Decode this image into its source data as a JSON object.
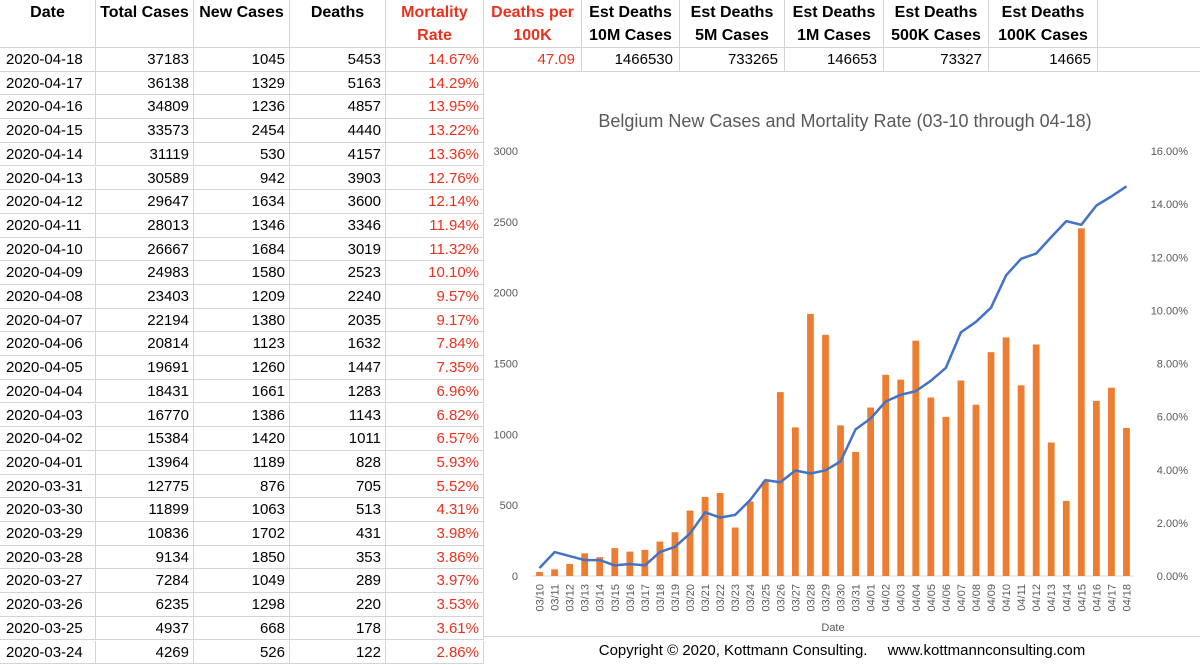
{
  "headers": {
    "date": "Date",
    "total_cases": "Total Cases",
    "new_cases": "New Cases",
    "deaths": "Deaths",
    "mortality_rate": [
      "Mortality",
      "Rate"
    ],
    "deaths_per_100k": [
      "Deaths per",
      "100K"
    ],
    "est_10m": [
      "Est Deaths",
      "10M Cases"
    ],
    "est_5m": [
      "Est Deaths",
      "5M Cases"
    ],
    "est_1m": [
      "Est Deaths",
      "1M Cases"
    ],
    "est_500k": [
      "Est Deaths",
      "500K Cases"
    ],
    "est_100k": [
      "Est Deaths",
      "100K Cases"
    ]
  },
  "estimates": {
    "deaths_per_100k": "47.09",
    "est_10m": "1466530",
    "est_5m": "733265",
    "est_1m": "146653",
    "est_500k": "73327",
    "est_100k": "14665"
  },
  "rows": [
    [
      "2020-04-18",
      "37183",
      "1045",
      "5453",
      "14.67%"
    ],
    [
      "2020-04-17",
      "36138",
      "1329",
      "5163",
      "14.29%"
    ],
    [
      "2020-04-16",
      "34809",
      "1236",
      "4857",
      "13.95%"
    ],
    [
      "2020-04-15",
      "33573",
      "2454",
      "4440",
      "13.22%"
    ],
    [
      "2020-04-14",
      "31119",
      "530",
      "4157",
      "13.36%"
    ],
    [
      "2020-04-13",
      "30589",
      "942",
      "3903",
      "12.76%"
    ],
    [
      "2020-04-12",
      "29647",
      "1634",
      "3600",
      "12.14%"
    ],
    [
      "2020-04-11",
      "28013",
      "1346",
      "3346",
      "11.94%"
    ],
    [
      "2020-04-10",
      "26667",
      "1684",
      "3019",
      "11.32%"
    ],
    [
      "2020-04-09",
      "24983",
      "1580",
      "2523",
      "10.10%"
    ],
    [
      "2020-04-08",
      "23403",
      "1209",
      "2240",
      "9.57%"
    ],
    [
      "2020-04-07",
      "22194",
      "1380",
      "2035",
      "9.17%"
    ],
    [
      "2020-04-06",
      "20814",
      "1123",
      "1632",
      "7.84%"
    ],
    [
      "2020-04-05",
      "19691",
      "1260",
      "1447",
      "7.35%"
    ],
    [
      "2020-04-04",
      "18431",
      "1661",
      "1283",
      "6.96%"
    ],
    [
      "2020-04-03",
      "16770",
      "1386",
      "1143",
      "6.82%"
    ],
    [
      "2020-04-02",
      "15384",
      "1420",
      "1011",
      "6.57%"
    ],
    [
      "2020-04-01",
      "13964",
      "1189",
      "828",
      "5.93%"
    ],
    [
      "2020-03-31",
      "12775",
      "876",
      "705",
      "5.52%"
    ],
    [
      "2020-03-30",
      "11899",
      "1063",
      "513",
      "4.31%"
    ],
    [
      "2020-03-29",
      "10836",
      "1702",
      "431",
      "3.98%"
    ],
    [
      "2020-03-28",
      "9134",
      "1850",
      "353",
      "3.86%"
    ],
    [
      "2020-03-27",
      "7284",
      "1049",
      "289",
      "3.97%"
    ],
    [
      "2020-03-26",
      "6235",
      "1298",
      "220",
      "3.53%"
    ],
    [
      "2020-03-25",
      "4937",
      "668",
      "178",
      "3.61%"
    ],
    [
      "2020-03-24",
      "4269",
      "526",
      "122",
      "2.86%"
    ]
  ],
  "copyright": {
    "text": "Copyright © 2020, Kottmann Consulting.",
    "url": "www.kottmannconsulting.com"
  },
  "colors": {
    "bar": "#ed7d31",
    "line": "#4472c4",
    "red_text": "#e8321e"
  },
  "chart_data": {
    "type": "bar",
    "title": "Belgium New Cases and Mortality Rate (03-10 through 04-18)",
    "xlabel": "Date",
    "ylabel": "",
    "ylim": [
      0,
      3000
    ],
    "y_ticks": [
      0,
      500,
      1000,
      1500,
      2000,
      2500,
      3000
    ],
    "y2lim": [
      0,
      16
    ],
    "y2_ticks": [
      "0.00%",
      "2.00%",
      "4.00%",
      "6.00%",
      "8.00%",
      "10.00%",
      "12.00%",
      "14.00%",
      "16.00%"
    ],
    "grid": false,
    "legend": "none",
    "categories": [
      "03/10",
      "03/11",
      "03/12",
      "03/13",
      "03/14",
      "03/15",
      "03/16",
      "03/17",
      "03/18",
      "03/19",
      "03/20",
      "03/21",
      "03/22",
      "03/23",
      "03/24",
      "03/25",
      "03/26",
      "03/27",
      "03/28",
      "03/29",
      "03/30",
      "03/31",
      "04/01",
      "04/02",
      "04/03",
      "04/04",
      "04/05",
      "04/06",
      "04/07",
      "04/08",
      "04/09",
      "04/10",
      "04/11",
      "04/12",
      "04/13",
      "04/14",
      "04/15",
      "04/16",
      "04/17",
      "04/18"
    ],
    "series": [
      {
        "type": "bar",
        "axis": "left",
        "values": [
          28,
          47,
          85,
          160,
          133,
          197,
          172,
          185,
          243,
          309,
          462,
          558,
          586,
          342,
          526,
          668,
          1298,
          1049,
          1850,
          1702,
          1063,
          876,
          1189,
          1420,
          1386,
          1661,
          1260,
          1123,
          1380,
          1209,
          1580,
          1684,
          1346,
          1634,
          942,
          530,
          2454,
          1236,
          1329,
          1045
        ]
      },
      {
        "type": "line",
        "axis": "right",
        "values": [
          0.3,
          0.9,
          0.75,
          0.6,
          0.6,
          0.4,
          0.45,
          0.4,
          0.9,
          1.1,
          1.6,
          2.4,
          2.2,
          2.3,
          2.86,
          3.61,
          3.53,
          3.97,
          3.86,
          3.98,
          4.31,
          5.52,
          5.93,
          6.57,
          6.82,
          6.96,
          7.35,
          7.84,
          9.17,
          9.57,
          10.1,
          11.32,
          11.94,
          12.14,
          12.76,
          13.36,
          13.22,
          13.95,
          14.29,
          14.67
        ]
      }
    ]
  }
}
